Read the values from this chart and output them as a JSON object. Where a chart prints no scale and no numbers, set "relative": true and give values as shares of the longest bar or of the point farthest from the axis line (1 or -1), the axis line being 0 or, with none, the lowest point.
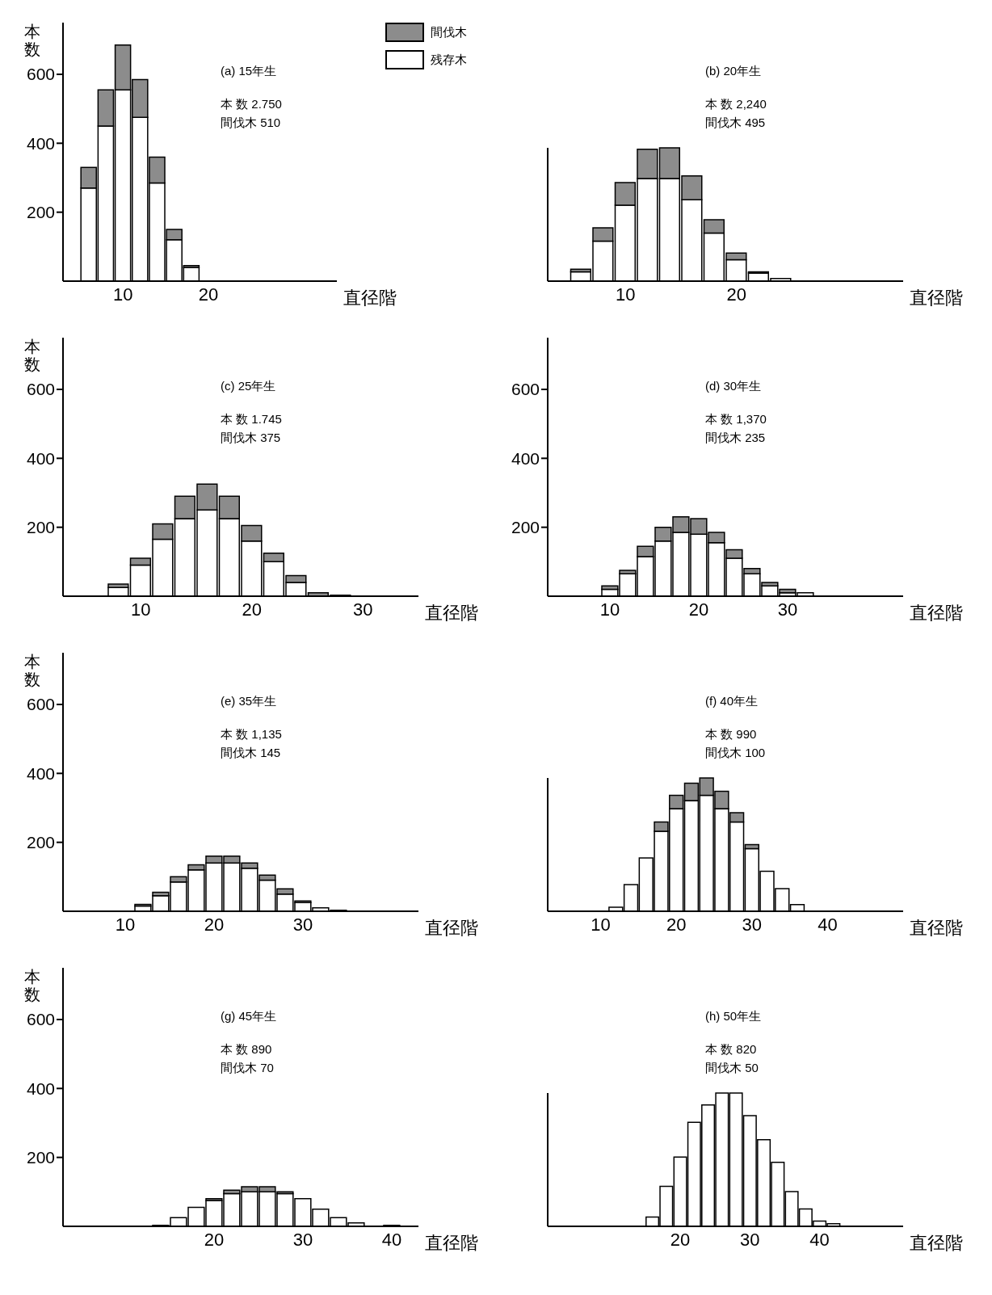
{
  "chart_data": [
    {
      "type": "bar",
      "stacked": true,
      "title": "(a) 15年生",
      "annotations": [
        "本 数 2.750",
        "間伐木 510"
      ],
      "xlabel": "直径階",
      "ylabel": "本数",
      "legend": "top right",
      "x": [
        6,
        8,
        10,
        12,
        14,
        16,
        18
      ],
      "xlim": [
        3,
        35
      ],
      "xticks": [
        10,
        20
      ],
      "ylim": [
        0,
        750
      ],
      "yticks": [
        200,
        400,
        600
      ],
      "series": [
        {
          "name": "残存木",
          "color": "#ffffff",
          "values": [
            270,
            450,
            555,
            475,
            285,
            120,
            40
          ]
        },
        {
          "name": "間伐木",
          "color": "#8c8c8c",
          "values": [
            60,
            105,
            130,
            110,
            75,
            30,
            5
          ]
        }
      ]
    },
    {
      "type": "bar",
      "stacked": true,
      "title": "(b) 20年生",
      "annotations": [
        "本 数 2,240",
        "間伐木 495"
      ],
      "xlabel": "直径階",
      "relative": true,
      "x": [
        6,
        8,
        10,
        12,
        14,
        16,
        18,
        20,
        22,
        24
      ],
      "xlim": [
        3,
        35
      ],
      "xticks": [
        10,
        20
      ],
      "series": [
        {
          "color": "#ffffff",
          "values": [
            0.07,
            0.3,
            0.57,
            0.77,
            0.77,
            0.61,
            0.36,
            0.16,
            0.06,
            0.02
          ]
        },
        {
          "color": "#8c8c8c",
          "values": [
            0.02,
            0.1,
            0.17,
            0.22,
            0.23,
            0.18,
            0.1,
            0.05,
            0.01,
            null
          ]
        }
      ]
    },
    {
      "type": "bar",
      "stacked": true,
      "title": "(c) 25年生",
      "annotations": [
        "本 数 1.745",
        "間伐木 375"
      ],
      "xlabel": "直径階",
      "ylabel": "本数",
      "x": [
        8,
        10,
        12,
        14,
        16,
        18,
        20,
        22,
        24,
        26,
        28
      ],
      "xlim": [
        3,
        35
      ],
      "xticks": [
        10,
        20,
        30
      ],
      "ylim": [
        0,
        750
      ],
      "yticks": [
        200,
        400,
        600
      ],
      "series": [
        {
          "color": "#ffffff",
          "values": [
            25,
            90,
            165,
            225,
            250,
            225,
            160,
            100,
            40,
            null,
            3
          ]
        },
        {
          "color": "#8c8c8c",
          "values": [
            10,
            20,
            45,
            65,
            75,
            65,
            45,
            25,
            20,
            10,
            null
          ]
        }
      ]
    },
    {
      "type": "bar",
      "stacked": true,
      "title": "(d) 30年生",
      "annotations": [
        "本 数 1,370",
        "間伐木 235"
      ],
      "xlabel": "直径階",
      "x": [
        10,
        12,
        14,
        16,
        18,
        20,
        22,
        24,
        26,
        28,
        30,
        32
      ],
      "xlim": [
        3,
        43
      ],
      "xticks": [
        10,
        20,
        30
      ],
      "ylim": [
        0,
        750
      ],
      "yticks": [
        200,
        400,
        600
      ],
      "series": [
        {
          "color": "#ffffff",
          "values": [
            20,
            65,
            115,
            160,
            185,
            180,
            155,
            110,
            65,
            30,
            10,
            10
          ]
        },
        {
          "color": "#8c8c8c",
          "values": [
            10,
            10,
            30,
            40,
            45,
            45,
            30,
            25,
            15,
            10,
            10,
            null
          ]
        }
      ]
    },
    {
      "type": "bar",
      "stacked": true,
      "title": "(e) 35年生",
      "annotations": [
        "本 数 1,135",
        "間伐木 145"
      ],
      "xlabel": "直径階",
      "ylabel": "本数",
      "x": [
        12,
        14,
        16,
        18,
        20,
        22,
        24,
        26,
        28,
        30,
        32,
        34
      ],
      "xlim": [
        3,
        43
      ],
      "xticks": [
        10,
        20,
        30
      ],
      "ylim": [
        0,
        750
      ],
      "yticks": [
        200,
        400,
        600
      ],
      "series": [
        {
          "color": "#ffffff",
          "values": [
            15,
            45,
            85,
            120,
            140,
            140,
            125,
            90,
            50,
            25,
            10,
            3
          ]
        },
        {
          "color": "#8c8c8c",
          "values": [
            5,
            10,
            15,
            15,
            20,
            20,
            15,
            15,
            15,
            5,
            null,
            null
          ]
        }
      ]
    },
    {
      "type": "bar",
      "stacked": true,
      "title": "(f) 40年生",
      "annotations": [
        "本 数 990",
        "間伐木 100"
      ],
      "xlabel": "直径階",
      "relative": true,
      "x": [
        12,
        14,
        16,
        18,
        20,
        22,
        24,
        26,
        28,
        30,
        32,
        34,
        36
      ],
      "xlim": [
        3,
        50
      ],
      "xticks": [
        10,
        20,
        30,
        40
      ],
      "series": [
        {
          "color": "#ffffff",
          "values": [
            0.03,
            0.2,
            0.4,
            0.6,
            0.77,
            0.83,
            0.87,
            0.77,
            0.67,
            0.47,
            0.3,
            0.17,
            0.05
          ]
        },
        {
          "color": "#8c8c8c",
          "values": [
            null,
            null,
            null,
            0.07,
            0.1,
            0.13,
            0.13,
            0.13,
            0.07,
            0.03,
            null,
            null,
            null
          ]
        }
      ]
    },
    {
      "type": "bar",
      "stacked": true,
      "title": "(g) 45年生",
      "annotations": [
        "本 数 890",
        "間伐木 70"
      ],
      "xlabel": "直径階",
      "ylabel": "本数",
      "x": [
        14,
        16,
        18,
        20,
        22,
        24,
        26,
        28,
        30,
        32,
        34,
        36,
        38,
        40
      ],
      "xlim": [
        3,
        43
      ],
      "xticks": [
        20,
        30,
        40
      ],
      "ylim": [
        0,
        750
      ],
      "yticks": [
        200,
        400,
        600
      ],
      "series": [
        {
          "color": "#ffffff",
          "values": [
            3,
            25,
            55,
            75,
            95,
            100,
            100,
            95,
            80,
            50,
            25,
            10,
            null,
            3
          ]
        },
        {
          "color": "#8c8c8c",
          "values": [
            null,
            null,
            null,
            5,
            10,
            15,
            15,
            5,
            null,
            null,
            null,
            null,
            null,
            null
          ]
        }
      ]
    },
    {
      "type": "bar",
      "stacked": true,
      "title": "(h) 50年生",
      "annotations": [
        "本 数 820",
        "間伐木 50"
      ],
      "xlabel": "直径階",
      "relative": true,
      "x": [
        16,
        18,
        20,
        22,
        24,
        26,
        28,
        30,
        32,
        34,
        36,
        38,
        40,
        42
      ],
      "xlim": [
        1,
        52
      ],
      "xticks": [
        20,
        30,
        40
      ],
      "series": [
        {
          "color": "#ffffff",
          "values": [
            0.07,
            0.3,
            0.52,
            0.78,
            0.91,
            1,
            1,
            0.83,
            0.65,
            0.48,
            0.26,
            0.13,
            0.04,
            0.02
          ]
        }
      ]
    }
  ]
}
